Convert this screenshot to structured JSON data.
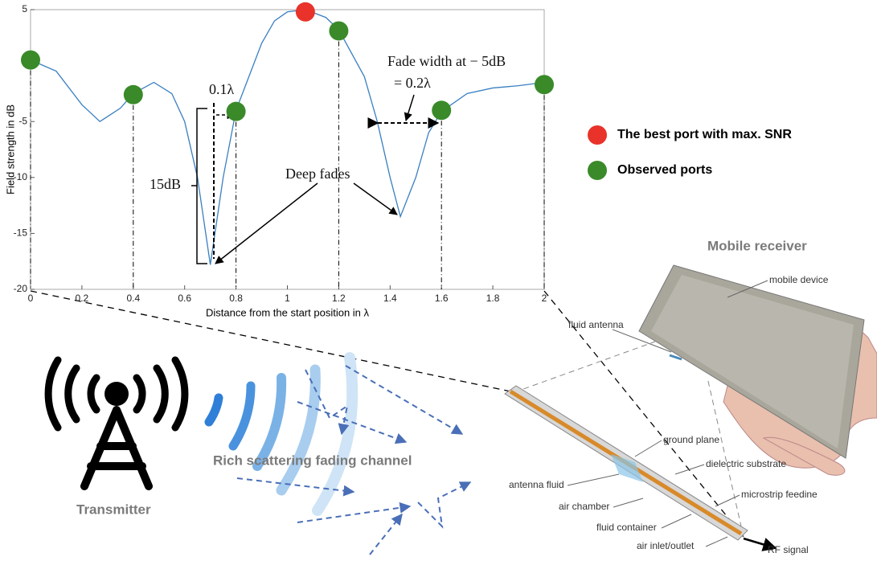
{
  "chart_data": {
    "type": "line",
    "ylabel": "Field strength in dB",
    "xlabel": "Distance from the start position in λ",
    "xlim": [
      0,
      2
    ],
    "xticks": [
      0,
      0.2,
      0.4,
      0.6,
      0.8,
      1,
      1.2,
      1.4,
      1.6,
      1.8,
      2
    ],
    "ylim": [
      -20,
      5
    ],
    "yticks": [
      -20,
      -15,
      -10,
      -5,
      5
    ],
    "x": [
      0,
      0.1,
      0.2,
      0.27,
      0.35,
      0.4,
      0.48,
      0.55,
      0.6,
      0.65,
      0.7,
      0.75,
      0.8,
      0.85,
      0.9,
      0.95,
      1.0,
      1.07,
      1.15,
      1.2,
      1.3,
      1.35,
      1.4,
      1.44,
      1.5,
      1.55,
      1.6,
      1.7,
      1.8,
      1.9,
      2.0
    ],
    "series": [
      {
        "color": "#3a7fc1",
        "values": [
          0.5,
          -0.5,
          -3.5,
          -5,
          -3.8,
          -2.5,
          -1.5,
          -2.5,
          -5,
          -10,
          -17.8,
          -10,
          -4,
          -1,
          2,
          4,
          4.8,
          5,
          4.3,
          3.2,
          -1,
          -5,
          -10,
          -13.5,
          -10,
          -6,
          -4.1,
          -2.5,
          -2,
          -1.8,
          -1.5
        ]
      },
      {
        "type": "scatter",
        "name": "The best port with max. SNR",
        "color": "#e8322a",
        "x": [
          1.07
        ],
        "values": [
          4.8
        ]
      },
      {
        "type": "scatter",
        "name": "Observed ports",
        "color": "#3a8a2a",
        "x": [
          0,
          0.4,
          0.8,
          1.2,
          1.6,
          2
        ],
        "values": [
          0.5,
          -2.6,
          -4.1,
          3.1,
          -4,
          -1.7
        ]
      }
    ],
    "annotations": [
      "0.1λ",
      "15dB",
      "Deep fades",
      "Fade width at − 5dB",
      "= 0.2λ"
    ]
  },
  "diagram": {
    "receiver_title": "Mobile receiver",
    "mobile_device": "mobile device",
    "fluid_antenna": "fluid antenna",
    "ground_plane": "ground plane",
    "dielectric_substrate": "dielectric substrate",
    "antenna_fluid": "antenna fluid",
    "microstrip": "microstrip feedine",
    "air_chamber": "air chamber",
    "fluid_container": "fluid container",
    "air_inlet": "air inlet/outlet",
    "rf_signal": "RF signal",
    "transmitter": "Transmitter",
    "channel": "Rich scattering fading channel"
  }
}
